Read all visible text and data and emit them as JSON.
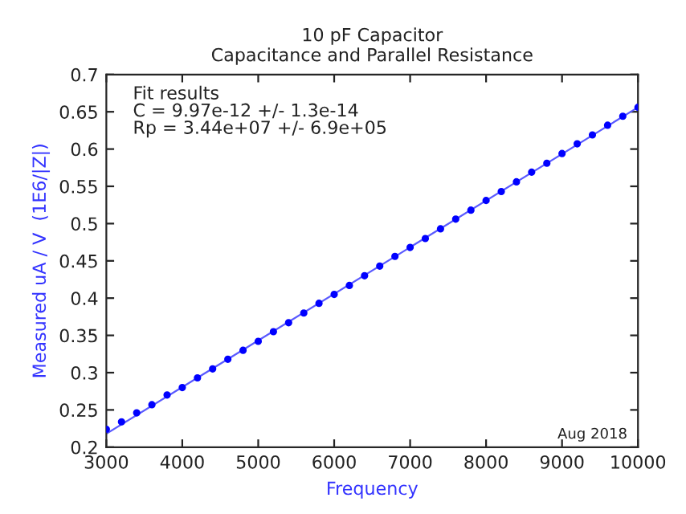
{
  "chart_data": {
    "type": "scatter",
    "title": "10 pF Capacitor\nCapacitance and Parallel Resistance",
    "xlabel": "Frequency",
    "ylabel": "Measured uA / V  (1E6/|Z|)",
    "x": [
      3000,
      3200,
      3400,
      3600,
      3800,
      4000,
      4200,
      4400,
      4600,
      4800,
      5000,
      5200,
      5400,
      5600,
      5800,
      6000,
      6200,
      6400,
      6600,
      6800,
      7000,
      7200,
      7400,
      7600,
      7800,
      8000,
      8200,
      8400,
      8600,
      8800,
      9000,
      9200,
      9400,
      9600,
      9800,
      10000
    ],
    "series": [
      {
        "marker": "circle",
        "color": "#0000ff",
        "values": [
          0.224,
          0.234,
          0.246,
          0.257,
          0.27,
          0.28,
          0.293,
          0.305,
          0.318,
          0.33,
          0.342,
          0.355,
          0.367,
          0.38,
          0.393,
          0.405,
          0.417,
          0.43,
          0.443,
          0.456,
          0.468,
          0.48,
          0.493,
          0.506,
          0.518,
          0.531,
          0.543,
          0.556,
          0.569,
          0.581,
          0.594,
          0.607,
          0.619,
          0.632,
          0.644,
          0.656
        ]
      },
      {
        "type": "line",
        "marker": "none",
        "color": "#5a5aff",
        "x": [
          3000,
          10000
        ],
        "values": [
          0.218,
          0.656
        ]
      }
    ],
    "xlim": [
      3000,
      10000
    ],
    "xticks": [
      3000,
      4000,
      5000,
      6000,
      7000,
      8000,
      9000,
      10000
    ],
    "ylim": [
      0.2,
      0.7
    ],
    "yticks": [
      0.2,
      0.25,
      0.3,
      0.35,
      0.4,
      0.45,
      0.5,
      0.55,
      0.6,
      0.65,
      0.7
    ],
    "annotations": [
      "Fit results\nC = 9.97e-12 +/- 1.3e-14\nRp = 3.44e+07 +/- 6.9e+05",
      "Aug 2018"
    ]
  }
}
